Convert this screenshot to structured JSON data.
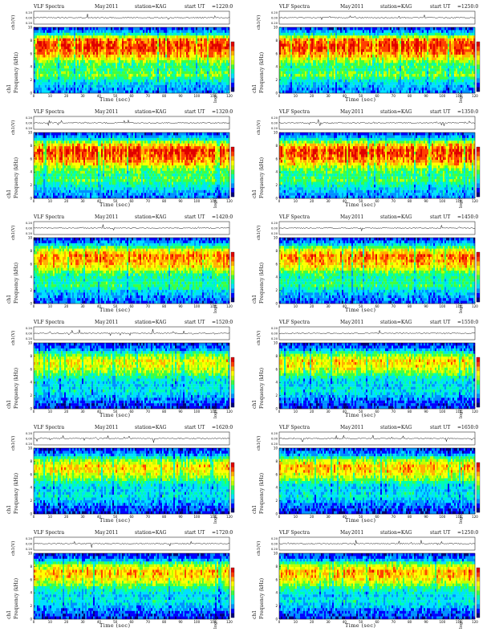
{
  "chart_data": [
    {
      "type": "heatmap",
      "title": "VLF Spectra",
      "month": "May",
      "year": "2011",
      "station": "station=KAG",
      "start_label": "start UT",
      "start_time": "=1220:0",
      "waveform_ylabel": "ch1(V)",
      "channel_label": "ch1",
      "ylabel": "Frequency (kHz)",
      "xlabel": "Time (sec)",
      "colorbar_label": "log(PSD(V^2/Hz))",
      "xlim": [
        0,
        120
      ],
      "ylim": [
        0,
        10
      ],
      "xticks": [
        "0",
        "10",
        "20",
        "30",
        "40",
        "50",
        "60",
        "70",
        "80",
        "90",
        "100",
        "110",
        "120"
      ],
      "yticks": [
        "0",
        "2",
        "4",
        "6",
        "8",
        "10"
      ],
      "waveform_yticks": [
        "0.20",
        "0.00",
        "0.20"
      ],
      "intensity_profile": [
        0.2,
        0.25,
        0.35,
        0.55,
        0.45,
        0.5,
        0.75,
        0.9,
        0.95,
        0.85,
        0.3,
        0.1
      ]
    },
    {
      "type": "heatmap",
      "title": "VLF Spectra",
      "month": "May",
      "year": "2011",
      "station": "station=KAG",
      "start_label": "start UT",
      "start_time": "=1250:0",
      "waveform_ylabel": "ch1(V)",
      "channel_label": "ch1",
      "ylabel": "Frequency (kHz)",
      "xlabel": "Time (sec)",
      "colorbar_label": "log(PSD(V^2/Hz))",
      "xlim": [
        0,
        120
      ],
      "ylim": [
        0,
        10
      ],
      "xticks": [
        "0",
        "10",
        "20",
        "30",
        "40",
        "50",
        "60",
        "70",
        "80",
        "90",
        "100",
        "110",
        "120"
      ],
      "yticks": [
        "0",
        "2",
        "4",
        "6",
        "8",
        "10"
      ],
      "waveform_yticks": [
        "0.20",
        "0.00",
        "0.20"
      ],
      "intensity_profile": [
        0.2,
        0.25,
        0.35,
        0.55,
        0.45,
        0.5,
        0.75,
        0.9,
        0.95,
        0.85,
        0.3,
        0.1
      ]
    },
    {
      "type": "heatmap",
      "title": "VLF Spectra",
      "month": "May",
      "year": "2011",
      "station": "station=KAG",
      "start_label": "start UT",
      "start_time": "=1320:0",
      "waveform_ylabel": "ch1(V)",
      "channel_label": "ch1",
      "ylabel": "Frequency (kHz)",
      "xlabel": "Time (sec)",
      "colorbar_label": "log(PSD(V^2/Hz))",
      "xlim": [
        0,
        120
      ],
      "ylim": [
        0,
        10
      ],
      "xticks": [
        "0",
        "10",
        "20",
        "30",
        "40",
        "50",
        "60",
        "70",
        "80",
        "90",
        "100",
        "110",
        "120"
      ],
      "yticks": [
        "0",
        "2",
        "4",
        "6",
        "8",
        "10"
      ],
      "waveform_yticks": [
        "0.20",
        "0.00",
        "0.20"
      ],
      "intensity_profile": [
        0.2,
        0.25,
        0.35,
        0.5,
        0.45,
        0.55,
        0.8,
        0.9,
        0.95,
        0.75,
        0.3,
        0.1
      ]
    },
    {
      "type": "heatmap",
      "title": "VLF Spectra",
      "month": "May",
      "year": "2011",
      "station": "station=KAG",
      "start_label": "start UT",
      "start_time": "=1350:0",
      "waveform_ylabel": "ch1(V)",
      "channel_label": "ch1",
      "ylabel": "Frequency (kHz)",
      "xlabel": "Time (sec)",
      "colorbar_label": "log(PSD(V^2/Hz))",
      "xlim": [
        0,
        120
      ],
      "ylim": [
        0,
        10
      ],
      "xticks": [
        "0",
        "10",
        "20",
        "30",
        "40",
        "50",
        "60",
        "70",
        "80",
        "90",
        "100",
        "110",
        "120"
      ],
      "yticks": [
        "0",
        "2",
        "4",
        "6",
        "8",
        "10"
      ],
      "waveform_yticks": [
        "0.20",
        "0.00",
        "0.20"
      ],
      "intensity_profile": [
        0.2,
        0.25,
        0.35,
        0.5,
        0.45,
        0.55,
        0.8,
        0.9,
        0.95,
        0.75,
        0.3,
        0.1
      ]
    },
    {
      "type": "heatmap",
      "title": "VLF Spectra",
      "month": "May",
      "year": "2011",
      "station": "station=KAG",
      "start_label": "start UT",
      "start_time": "=1420:0",
      "waveform_ylabel": "ch1(V)",
      "channel_label": "ch1",
      "ylabel": "Frequency (kHz)",
      "xlabel": "Time (sec)",
      "colorbar_label": "log(PSD(V^2/Hz))",
      "xlim": [
        0,
        120
      ],
      "ylim": [
        0,
        10
      ],
      "xticks": [
        "0",
        "10",
        "20",
        "30",
        "40",
        "50",
        "60",
        "70",
        "80",
        "90",
        "100",
        "110",
        "120"
      ],
      "yticks": [
        "0",
        "2",
        "4",
        "6",
        "8",
        "10"
      ],
      "waveform_yticks": [
        "0.20",
        "0.00",
        "0.20"
      ],
      "intensity_profile": [
        0.15,
        0.2,
        0.3,
        0.45,
        0.4,
        0.45,
        0.7,
        0.8,
        0.85,
        0.65,
        0.25,
        0.1
      ]
    },
    {
      "type": "heatmap",
      "title": "VLF Spectra",
      "month": "May",
      "year": "2011",
      "station": "station=KAG",
      "start_label": "start UT",
      "start_time": "=1450:0",
      "waveform_ylabel": "ch1(V)",
      "channel_label": "ch1",
      "ylabel": "Frequency (kHz)",
      "xlabel": "Time (sec)",
      "colorbar_label": "log(PSD(V^2/Hz))",
      "xlim": [
        0,
        120
      ],
      "ylim": [
        0,
        10
      ],
      "xticks": [
        "0",
        "10",
        "20",
        "30",
        "40",
        "50",
        "60",
        "70",
        "80",
        "90",
        "100",
        "110",
        "120"
      ],
      "yticks": [
        "0",
        "2",
        "4",
        "6",
        "8",
        "10"
      ],
      "waveform_yticks": [
        "0.20",
        "0.00",
        "0.20"
      ],
      "intensity_profile": [
        0.15,
        0.2,
        0.3,
        0.45,
        0.4,
        0.45,
        0.7,
        0.8,
        0.85,
        0.65,
        0.25,
        0.1
      ]
    },
    {
      "type": "heatmap",
      "title": "VLF Spectra",
      "month": "May",
      "year": "2011",
      "station": "station=KAG",
      "start_label": "start UT",
      "start_time": "=1520:0",
      "waveform_ylabel": "ch1(V)",
      "channel_label": "ch1",
      "ylabel": "Frequency (kHz)",
      "xlabel": "Time (sec)",
      "colorbar_label": "log(PSD(V^2/Hz))",
      "xlim": [
        0,
        120
      ],
      "ylim": [
        0,
        10
      ],
      "xticks": [
        "0",
        "10",
        "20",
        "30",
        "40",
        "50",
        "60",
        "70",
        "80",
        "90",
        "100",
        "110",
        "120"
      ],
      "yticks": [
        "0",
        "2",
        "4",
        "6",
        "8",
        "10"
      ],
      "waveform_yticks": [
        "0.20",
        "0.00",
        "0.20"
      ],
      "intensity_profile": [
        0.1,
        0.15,
        0.25,
        0.35,
        0.3,
        0.35,
        0.55,
        0.65,
        0.7,
        0.5,
        0.2,
        0.1
      ]
    },
    {
      "type": "heatmap",
      "title": "VLF Spectra",
      "month": "May",
      "year": "2011",
      "station": "station=KAG",
      "start_label": "start UT",
      "start_time": "=1550:0",
      "waveform_ylabel": "ch1(V)",
      "channel_label": "ch1",
      "ylabel": "Frequency (kHz)",
      "xlabel": "Time (sec)",
      "colorbar_label": "log(PSD(V^2/Hz))",
      "xlim": [
        0,
        120
      ],
      "ylim": [
        0,
        10
      ],
      "xticks": [
        "0",
        "10",
        "20",
        "30",
        "40",
        "50",
        "60",
        "70",
        "80",
        "90",
        "100",
        "110",
        "120"
      ],
      "yticks": [
        "0",
        "2",
        "4",
        "6",
        "8",
        "10"
      ],
      "waveform_yticks": [
        "0.20",
        "0.00",
        "0.20"
      ],
      "intensity_profile": [
        0.1,
        0.15,
        0.25,
        0.35,
        0.3,
        0.35,
        0.55,
        0.7,
        0.75,
        0.55,
        0.2,
        0.1
      ]
    },
    {
      "type": "heatmap",
      "title": "VLF Spectra",
      "month": "May",
      "year": "2011",
      "station": "station=KAG",
      "start_label": "start UT",
      "start_time": "=1620:0",
      "waveform_ylabel": "ch1(V)",
      "channel_label": "ch1",
      "ylabel": "Frequency (kHz)",
      "xlabel": "Time (sec)",
      "colorbar_label": "log(PSD(V^2/Hz))",
      "xlim": [
        0,
        120
      ],
      "ylim": [
        0,
        10
      ],
      "xticks": [
        "0",
        "10",
        "20",
        "30",
        "40",
        "50",
        "60",
        "70",
        "80",
        "90",
        "100",
        "110",
        "120"
      ],
      "yticks": [
        "0",
        "2",
        "4",
        "6",
        "8",
        "10"
      ],
      "waveform_yticks": [
        "0.20",
        "0.00",
        "0.20"
      ],
      "intensity_profile": [
        0.1,
        0.15,
        0.25,
        0.35,
        0.3,
        0.35,
        0.55,
        0.7,
        0.75,
        0.55,
        0.2,
        0.1
      ]
    },
    {
      "type": "heatmap",
      "title": "VLF Spectra",
      "month": "May",
      "year": "2011",
      "station": "station=KAG",
      "start_label": "start UT",
      "start_time": "=1650:0",
      "waveform_ylabel": "ch1(V)",
      "channel_label": "ch1",
      "ylabel": "Frequency (kHz)",
      "xlabel": "Time (sec)",
      "colorbar_label": "log(PSD(V^2/Hz))",
      "xlim": [
        0,
        120
      ],
      "ylim": [
        0,
        10
      ],
      "xticks": [
        "0",
        "10",
        "20",
        "30",
        "40",
        "50",
        "60",
        "70",
        "80",
        "90",
        "100",
        "110",
        "120"
      ],
      "yticks": [
        "0",
        "2",
        "4",
        "6",
        "8",
        "10"
      ],
      "waveform_yticks": [
        "0.20",
        "0.00",
        "0.20"
      ],
      "intensity_profile": [
        0.1,
        0.15,
        0.25,
        0.35,
        0.3,
        0.35,
        0.6,
        0.75,
        0.8,
        0.6,
        0.2,
        0.1
      ]
    },
    {
      "type": "heatmap",
      "title": "VLF Spectra",
      "month": "May",
      "year": "2011",
      "station": "station=KAG",
      "start_label": "start UT",
      "start_time": "=1720:0",
      "waveform_ylabel": "ch1(V)",
      "channel_label": "ch1",
      "ylabel": "Frequency (kHz)",
      "xlabel": "Time (sec)",
      "colorbar_label": "log(PSD(V^2/Hz))",
      "xlim": [
        0,
        120
      ],
      "ylim": [
        0,
        10
      ],
      "xticks": [
        "0",
        "10",
        "20",
        "30",
        "40",
        "50",
        "60",
        "70",
        "80",
        "90",
        "100",
        "110",
        "120"
      ],
      "yticks": [
        "0",
        "2",
        "4",
        "6",
        "8",
        "10"
      ],
      "waveform_yticks": [
        "0.20",
        "0.00",
        "0.20"
      ],
      "intensity_profile": [
        0.1,
        0.15,
        0.25,
        0.35,
        0.3,
        0.4,
        0.6,
        0.75,
        0.8,
        0.6,
        0.2,
        0.1
      ]
    },
    {
      "type": "heatmap",
      "title": "VLF Spectra",
      "month": "May",
      "year": "2011",
      "station": "station=KAG",
      "start_label": "start UT",
      "start_time": "=1250:0",
      "waveform_ylabel": "ch1(V)",
      "channel_label": "ch1",
      "ylabel": "Frequency (kHz)",
      "xlabel": "Time (sec)",
      "colorbar_label": "log(PSD(V^2/Hz))",
      "xlim": [
        0,
        120
      ],
      "ylim": [
        0,
        10
      ],
      "xticks": [
        "0",
        "10",
        "20",
        "30",
        "40",
        "50",
        "60",
        "70",
        "80",
        "90",
        "100",
        "110",
        "120"
      ],
      "yticks": [
        "0",
        "2",
        "4",
        "6",
        "8",
        "10"
      ],
      "waveform_yticks": [
        "0.20",
        "0.00",
        "0.20"
      ],
      "intensity_profile": [
        0.1,
        0.15,
        0.25,
        0.35,
        0.3,
        0.4,
        0.6,
        0.75,
        0.8,
        0.6,
        0.2,
        0.1
      ]
    }
  ],
  "colorbar": {
    "colors": [
      "#00007a",
      "#0000ff",
      "#0090ff",
      "#00e0ff",
      "#00ffb0",
      "#40ff40",
      "#c0ff00",
      "#ffff00",
      "#ffb000",
      "#ff4000",
      "#e00000"
    ]
  }
}
